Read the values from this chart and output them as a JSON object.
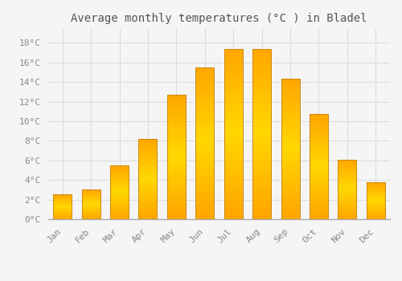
{
  "title": "Average monthly temperatures (°C ) in Bladel",
  "months": [
    "Jan",
    "Feb",
    "Mar",
    "Apr",
    "May",
    "Jun",
    "Jul",
    "Aug",
    "Sep",
    "Oct",
    "Nov",
    "Dec"
  ],
  "values": [
    2.5,
    3.0,
    5.5,
    8.2,
    12.7,
    15.5,
    17.4,
    17.4,
    14.3,
    10.7,
    6.1,
    3.8
  ],
  "bar_color_top": "#FFD700",
  "bar_color_bottom": "#FFA500",
  "bar_edge_color": "#CC8800",
  "background_color": "#F5F5F5",
  "plot_bg_color": "#F0F0F0",
  "grid_color": "#DDDDDD",
  "yticks": [
    0,
    2,
    4,
    6,
    8,
    10,
    12,
    14,
    16,
    18
  ],
  "ylim": [
    0,
    19.5
  ],
  "title_fontsize": 10,
  "tick_fontsize": 8,
  "tick_color": "#888888",
  "font_family": "monospace"
}
